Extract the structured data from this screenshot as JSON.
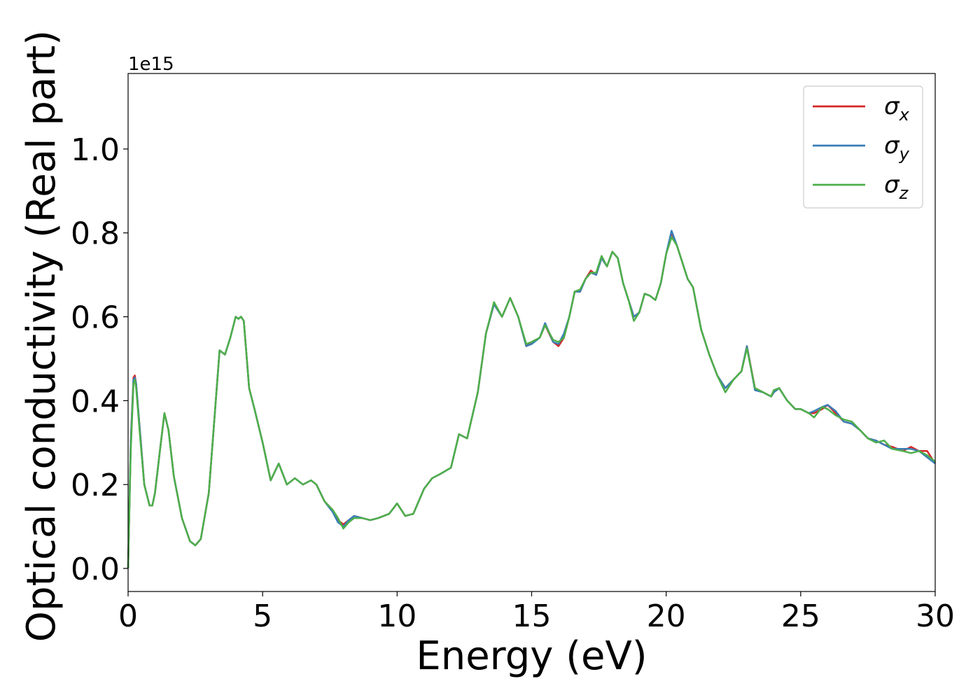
{
  "chart_data": {
    "type": "line",
    "title": "",
    "xlabel": "Energy (eV)",
    "ylabel": "Optical conductivity (Real part)",
    "y_offset_label": "1e15",
    "xlim": [
      0,
      30
    ],
    "ylim": [
      -0.055,
      1.18
    ],
    "x_ticks": [
      0,
      5,
      10,
      15,
      20,
      25,
      30
    ],
    "x_tick_labels": [
      "0",
      "5",
      "10",
      "15",
      "20",
      "25",
      "30"
    ],
    "y_ticks": [
      0.0,
      0.2,
      0.4,
      0.6,
      0.8,
      1.0
    ],
    "y_tick_labels": [
      "0.0",
      "0.2",
      "0.4",
      "0.6",
      "0.8",
      "1.0"
    ],
    "grid": false,
    "legend_position": "top-right",
    "x": [
      0,
      0.1,
      0.2,
      0.25,
      0.3,
      0.45,
      0.6,
      0.8,
      0.9,
      1.0,
      1.2,
      1.35,
      1.5,
      1.7,
      2.0,
      2.3,
      2.5,
      2.7,
      3.0,
      3.2,
      3.4,
      3.6,
      3.8,
      4.0,
      4.1,
      4.2,
      4.3,
      4.5,
      4.7,
      5.0,
      5.3,
      5.6,
      5.9,
      6.2,
      6.5,
      6.8,
      7.0,
      7.3,
      7.6,
      7.8,
      8.0,
      8.2,
      8.4,
      8.7,
      9.0,
      9.3,
      9.7,
      10.0,
      10.3,
      10.6,
      11.0,
      11.3,
      11.6,
      12.0,
      12.3,
      12.6,
      13.0,
      13.3,
      13.6,
      13.9,
      14.2,
      14.5,
      14.8,
      15.0,
      15.3,
      15.5,
      15.8,
      16.0,
      16.2,
      16.4,
      16.6,
      16.8,
      17.0,
      17.2,
      17.4,
      17.6,
      17.8,
      18.0,
      18.2,
      18.4,
      18.6,
      18.8,
      19.0,
      19.2,
      19.4,
      19.6,
      19.8,
      20.0,
      20.2,
      20.4,
      20.6,
      20.8,
      21.0,
      21.3,
      21.6,
      21.9,
      22.2,
      22.5,
      22.8,
      23.0,
      23.3,
      23.6,
      23.9,
      24.0,
      24.2,
      24.5,
      24.8,
      25.0,
      25.3,
      25.5,
      25.8,
      26.0,
      26.3,
      26.6,
      26.9,
      27.2,
      27.5,
      27.8,
      28.1,
      28.4,
      28.8,
      29.1,
      29.4,
      29.7,
      30.0
    ],
    "series": [
      {
        "name": "σx",
        "color": "#d62728",
        "values": [
          0.0,
          0.3,
          0.455,
          0.46,
          0.44,
          0.32,
          0.2,
          0.15,
          0.15,
          0.18,
          0.29,
          0.37,
          0.33,
          0.22,
          0.12,
          0.065,
          0.055,
          0.07,
          0.18,
          0.35,
          0.52,
          0.51,
          0.55,
          0.6,
          0.595,
          0.6,
          0.59,
          0.43,
          0.38,
          0.3,
          0.21,
          0.25,
          0.2,
          0.215,
          0.2,
          0.21,
          0.2,
          0.16,
          0.14,
          0.115,
          0.105,
          0.115,
          0.125,
          0.12,
          0.115,
          0.12,
          0.13,
          0.155,
          0.125,
          0.13,
          0.19,
          0.215,
          0.225,
          0.24,
          0.32,
          0.31,
          0.42,
          0.56,
          0.63,
          0.6,
          0.645,
          0.6,
          0.53,
          0.54,
          0.55,
          0.58,
          0.54,
          0.53,
          0.55,
          0.6,
          0.66,
          0.66,
          0.69,
          0.71,
          0.7,
          0.74,
          0.72,
          0.755,
          0.74,
          0.68,
          0.64,
          0.6,
          0.61,
          0.655,
          0.65,
          0.64,
          0.68,
          0.75,
          0.8,
          0.77,
          0.73,
          0.69,
          0.67,
          0.57,
          0.51,
          0.46,
          0.43,
          0.45,
          0.47,
          0.53,
          0.43,
          0.42,
          0.41,
          0.42,
          0.43,
          0.4,
          0.38,
          0.38,
          0.37,
          0.37,
          0.38,
          0.39,
          0.37,
          0.35,
          0.345,
          0.33,
          0.31,
          0.305,
          0.295,
          0.29,
          0.28,
          0.29,
          0.28,
          0.28,
          0.25
        ]
      },
      {
        "name": "σy",
        "color": "#377eb8",
        "values": [
          0.0,
          0.3,
          0.45,
          0.455,
          0.44,
          0.32,
          0.2,
          0.15,
          0.15,
          0.18,
          0.29,
          0.37,
          0.33,
          0.22,
          0.12,
          0.065,
          0.055,
          0.07,
          0.18,
          0.35,
          0.52,
          0.51,
          0.55,
          0.6,
          0.595,
          0.6,
          0.59,
          0.43,
          0.38,
          0.3,
          0.21,
          0.25,
          0.2,
          0.215,
          0.2,
          0.21,
          0.2,
          0.16,
          0.135,
          0.11,
          0.1,
          0.115,
          0.125,
          0.12,
          0.115,
          0.12,
          0.13,
          0.155,
          0.125,
          0.13,
          0.19,
          0.215,
          0.225,
          0.24,
          0.32,
          0.31,
          0.42,
          0.56,
          0.63,
          0.6,
          0.645,
          0.6,
          0.53,
          0.535,
          0.55,
          0.585,
          0.54,
          0.535,
          0.56,
          0.6,
          0.66,
          0.66,
          0.69,
          0.705,
          0.7,
          0.74,
          0.72,
          0.755,
          0.74,
          0.68,
          0.64,
          0.6,
          0.61,
          0.655,
          0.65,
          0.64,
          0.68,
          0.75,
          0.805,
          0.77,
          0.73,
          0.69,
          0.67,
          0.57,
          0.51,
          0.46,
          0.43,
          0.45,
          0.47,
          0.53,
          0.425,
          0.42,
          0.41,
          0.42,
          0.43,
          0.4,
          0.38,
          0.38,
          0.37,
          0.375,
          0.385,
          0.39,
          0.375,
          0.35,
          0.345,
          0.33,
          0.31,
          0.305,
          0.295,
          0.285,
          0.285,
          0.285,
          0.28,
          0.265,
          0.25
        ]
      },
      {
        "name": "σz",
        "color": "#4daf4a",
        "values": [
          0.0,
          0.28,
          0.44,
          0.45,
          0.43,
          0.31,
          0.2,
          0.15,
          0.15,
          0.18,
          0.29,
          0.37,
          0.33,
          0.22,
          0.12,
          0.065,
          0.055,
          0.07,
          0.18,
          0.35,
          0.52,
          0.51,
          0.55,
          0.6,
          0.595,
          0.6,
          0.59,
          0.43,
          0.38,
          0.3,
          0.21,
          0.25,
          0.2,
          0.215,
          0.2,
          0.21,
          0.2,
          0.16,
          0.14,
          0.12,
          0.095,
          0.11,
          0.12,
          0.12,
          0.115,
          0.12,
          0.13,
          0.155,
          0.125,
          0.13,
          0.19,
          0.215,
          0.225,
          0.24,
          0.32,
          0.31,
          0.42,
          0.56,
          0.635,
          0.6,
          0.645,
          0.6,
          0.535,
          0.54,
          0.55,
          0.58,
          0.545,
          0.54,
          0.55,
          0.6,
          0.66,
          0.665,
          0.69,
          0.705,
          0.705,
          0.745,
          0.72,
          0.755,
          0.74,
          0.68,
          0.64,
          0.59,
          0.61,
          0.655,
          0.65,
          0.64,
          0.68,
          0.75,
          0.79,
          0.77,
          0.73,
          0.69,
          0.67,
          0.57,
          0.51,
          0.46,
          0.42,
          0.45,
          0.47,
          0.525,
          0.43,
          0.42,
          0.41,
          0.425,
          0.43,
          0.4,
          0.38,
          0.38,
          0.37,
          0.36,
          0.385,
          0.38,
          0.365,
          0.355,
          0.35,
          0.33,
          0.31,
          0.3,
          0.305,
          0.285,
          0.28,
          0.275,
          0.28,
          0.27,
          0.255
        ]
      }
    ]
  }
}
